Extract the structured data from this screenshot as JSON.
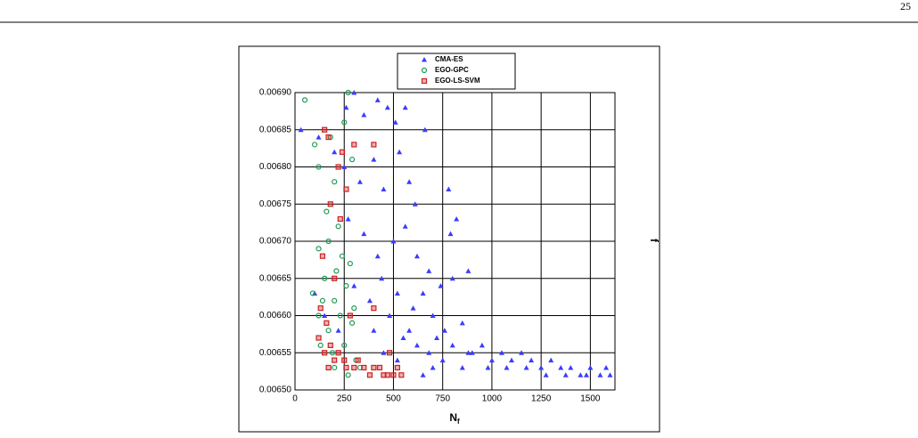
{
  "page_number": "25",
  "chart_data": {
    "type": "scatter",
    "x_label": "N",
    "x_label_sub": "f",
    "y_label": "f",
    "xlim": [
      0,
      1625
    ],
    "ylim": [
      0.0065,
      0.0069
    ],
    "xticks": [
      0,
      250,
      500,
      750,
      1000,
      1250,
      1500
    ],
    "yticks": [
      {
        "value": 0.0065,
        "label": "0.00650"
      },
      {
        "value": 0.00655,
        "label": "0.00655"
      },
      {
        "value": 0.0066,
        "label": "0.00660"
      },
      {
        "value": 0.00665,
        "label": "0.00665"
      },
      {
        "value": 0.0067,
        "label": "0.00670"
      },
      {
        "value": 0.00675,
        "label": "0.00675"
      },
      {
        "value": 0.0068,
        "label": "0.00680"
      },
      {
        "value": 0.00685,
        "label": "0.00685"
      },
      {
        "value": 0.0069,
        "label": "0.00690"
      }
    ],
    "grid": true,
    "series": [
      {
        "name": "CMA-ES",
        "color": "#3b3bff",
        "marker": "triangle",
        "x": [
          30,
          120,
          200,
          260,
          300,
          350,
          420,
          470,
          510,
          560,
          660,
          250,
          330,
          400,
          450,
          530,
          580,
          610,
          780,
          820,
          790,
          270,
          350,
          420,
          500,
          560,
          620,
          680,
          740,
          800,
          880,
          300,
          380,
          440,
          520,
          600,
          650,
          700,
          760,
          850,
          400,
          480,
          550,
          620,
          680,
          720,
          800,
          880,
          950,
          1000,
          1050,
          1100,
          1150,
          1200,
          1250,
          1300,
          1350,
          1400,
          1450,
          1500,
          1550,
          1600,
          650,
          700,
          750,
          850,
          900,
          980,
          1075,
          1175,
          1275,
          1375,
          1480,
          1580,
          150,
          220,
          100,
          450,
          520,
          580
        ],
        "values": [
          0.00685,
          0.00684,
          0.00682,
          0.00688,
          0.0069,
          0.00687,
          0.00689,
          0.00688,
          0.00686,
          0.00688,
          0.00685,
          0.0068,
          0.00678,
          0.00681,
          0.00677,
          0.00682,
          0.00678,
          0.00675,
          0.00677,
          0.00673,
          0.00671,
          0.00673,
          0.00671,
          0.00668,
          0.0067,
          0.00672,
          0.00668,
          0.00666,
          0.00664,
          0.00665,
          0.00666,
          0.00664,
          0.00662,
          0.00665,
          0.00663,
          0.00661,
          0.00663,
          0.0066,
          0.00658,
          0.00659,
          0.00658,
          0.0066,
          0.00657,
          0.00656,
          0.00655,
          0.00657,
          0.00656,
          0.00655,
          0.00656,
          0.00654,
          0.00655,
          0.00654,
          0.00655,
          0.00654,
          0.00653,
          0.00654,
          0.00653,
          0.00653,
          0.00652,
          0.00653,
          0.00652,
          0.00652,
          0.00652,
          0.00653,
          0.00654,
          0.00653,
          0.00655,
          0.00653,
          0.00653,
          0.00653,
          0.00652,
          0.00652,
          0.00652,
          0.00653,
          0.0066,
          0.00658,
          0.00663,
          0.00655,
          0.00654,
          0.00658
        ]
      },
      {
        "name": "EGO-GPC",
        "color": "#1f9a55",
        "marker": "circle",
        "x": [
          50,
          100,
          120,
          180,
          270,
          250,
          290,
          200,
          160,
          220,
          120,
          170,
          240,
          280,
          150,
          200,
          260,
          300,
          120,
          170,
          230,
          290,
          130,
          190,
          250,
          310,
          200,
          270,
          330,
          90,
          140,
          210
        ],
        "values": [
          0.00689,
          0.00683,
          0.0068,
          0.00684,
          0.0069,
          0.00686,
          0.00681,
          0.00678,
          0.00674,
          0.00672,
          0.00669,
          0.0067,
          0.00668,
          0.00667,
          0.00665,
          0.00662,
          0.00664,
          0.00661,
          0.0066,
          0.00658,
          0.0066,
          0.00659,
          0.00656,
          0.00655,
          0.00656,
          0.00654,
          0.00653,
          0.00652,
          0.00653,
          0.00663,
          0.00662,
          0.00666
        ]
      },
      {
        "name": "EGO-LS-SVM",
        "color": "#cc2222",
        "marker": "square",
        "x": [
          150,
          170,
          240,
          220,
          300,
          400,
          180,
          260,
          230,
          140,
          200,
          130,
          160,
          120,
          180,
          150,
          200,
          170,
          250,
          300,
          350,
          400,
          450,
          500,
          540,
          220,
          280,
          400,
          480,
          320,
          380,
          430,
          470,
          520,
          260
        ],
        "values": [
          0.00685,
          0.00684,
          0.00682,
          0.0068,
          0.00683,
          0.00683,
          0.00675,
          0.00677,
          0.00673,
          0.00668,
          0.00665,
          0.00661,
          0.00659,
          0.00657,
          0.00656,
          0.00655,
          0.00654,
          0.00653,
          0.00654,
          0.00653,
          0.00653,
          0.00653,
          0.00652,
          0.00652,
          0.00652,
          0.00655,
          0.0066,
          0.00661,
          0.00655,
          0.00654,
          0.00652,
          0.00653,
          0.00652,
          0.00653,
          0.00653
        ]
      }
    ]
  }
}
